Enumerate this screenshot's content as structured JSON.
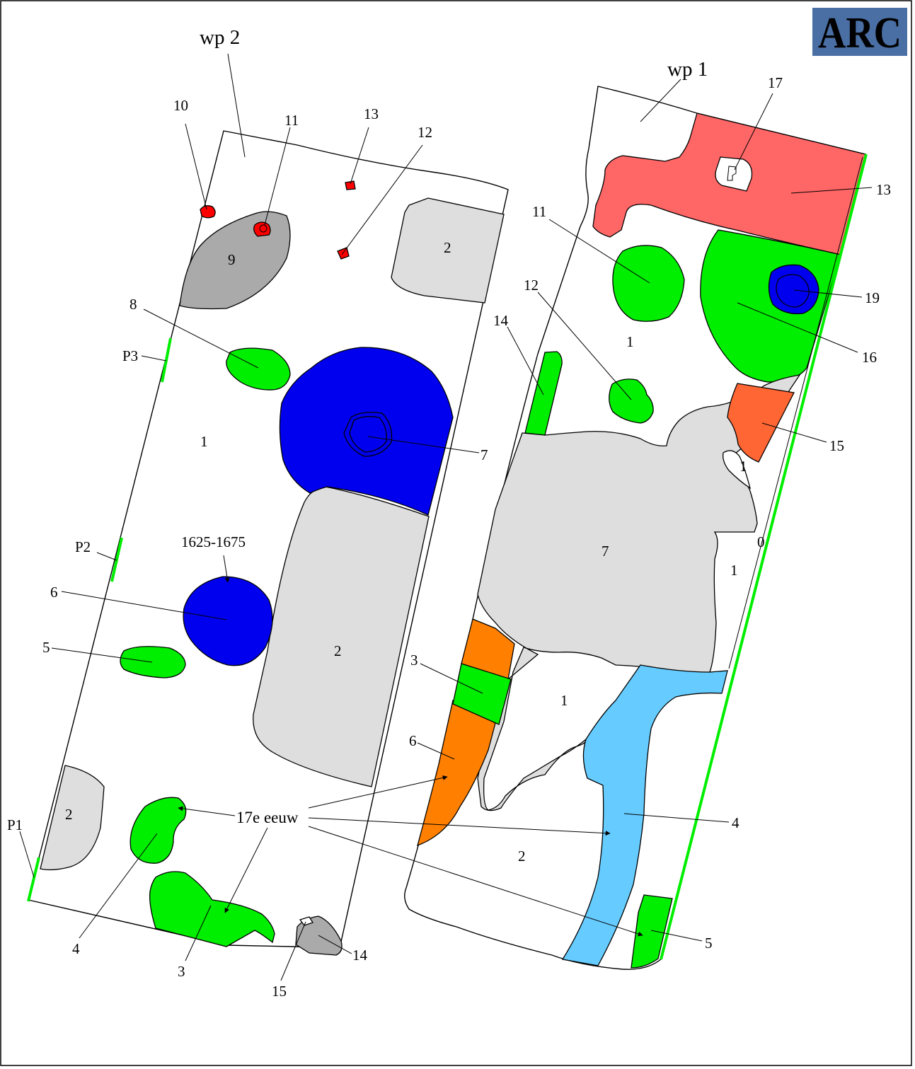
{
  "logo": {
    "text": "ARC",
    "background": "#4a6fa5",
    "color": "#ffffff"
  },
  "colors": {
    "green": "#00ee00",
    "blue": "#0000ee",
    "red": "#ff0000",
    "grey": "#aaaaaa",
    "light_grey": "#dedede",
    "salmon": "#ff6666",
    "orange": "#ff8000",
    "orange_red": "#ff6633",
    "light_blue": "#66ccff"
  },
  "wp2": {
    "title": "wp 2",
    "profiles": [
      "P1",
      "P2",
      "P3"
    ],
    "features": {
      "f1": "1",
      "f2a": "2",
      "f2b": "2",
      "f2c": "2",
      "f3": "3",
      "f4": "4",
      "f5": "5",
      "f6": "6",
      "f7": "7",
      "f8": "8",
      "f9": "9",
      "f10": "10",
      "f11": "11",
      "f12": "12",
      "f13": "13",
      "f14": "14",
      "f15": "15"
    },
    "dating_label": "1625-1675"
  },
  "wp1": {
    "title": "wp 1",
    "features": {
      "f0": "0",
      "f1a": "1",
      "f1b": "1",
      "f1c": "1",
      "f1d": "1",
      "f2": "2",
      "f3": "3",
      "f4": "4",
      "f5": "5",
      "f6": "6",
      "f7": "7",
      "f11": "11",
      "f12": "12",
      "f13": "13",
      "f14": "14",
      "f15": "15",
      "f16": "16",
      "f17": "17",
      "f19": "19"
    }
  },
  "century_label": "17e eeuw"
}
